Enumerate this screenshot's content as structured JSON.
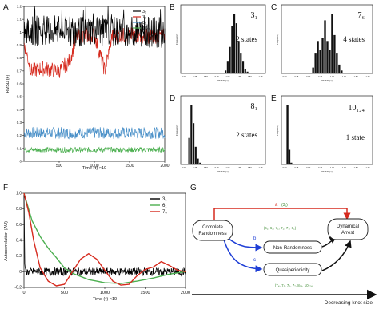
{
  "panels": {
    "A": {
      "letter": "A",
      "ylabel": "RMSD (F)",
      "xlabel": "Time (τ) ×10",
      "xticks": [
        "500",
        "1000",
        "1500",
        "2000"
      ],
      "yticks": [
        "0",
        "0.1",
        "0.2",
        "0.3",
        "0.4",
        "0.5",
        "0.6",
        "0.7",
        "0.8",
        "0.9",
        "1",
        "1.1",
        "1.2"
      ],
      "legend": [
        {
          "label": "3₁",
          "color": "#000000"
        },
        {
          "label": "7₆",
          "color": "#d62a1e"
        },
        {
          "label": "8₁",
          "color": "#4a90c8"
        },
        {
          "label": "10₁₂₄",
          "color": "#4caf50"
        }
      ]
    },
    "B": {
      "letter": "B",
      "knot": "3₁",
      "states": "2 states",
      "xlabel": "RMSD (σ)",
      "ylabel": "Frequency",
      "xticks": [
        "0.00",
        "0.25",
        "0.50",
        "0.75",
        "1.00",
        "1.25",
        "1.50",
        "1.75"
      ]
    },
    "C": {
      "letter": "C",
      "knot": "7₆",
      "states": "4 states",
      "xlabel": "RMSD (σ)",
      "ylabel": "Frequency",
      "xticks": [
        "0.00",
        "0.25",
        "0.50",
        "0.75",
        "1.00",
        "1.25",
        "1.50",
        "1.75"
      ]
    },
    "D": {
      "letter": "D",
      "knot": "8₁",
      "states": "2 states",
      "xlabel": "RMSD (σ)",
      "ylabel": "Frequency",
      "xticks": [
        "0.00",
        "0.25",
        "0.50",
        "0.75",
        "1.00",
        "1.25",
        "1.50",
        "1.75"
      ]
    },
    "E": {
      "letter": "E",
      "knot": "10₁₂₄",
      "states": "1 state",
      "xlabel": "RMSD (σ)",
      "ylabel": "Frequency",
      "xticks": [
        "0.00",
        "0.25",
        "0.50",
        "0.75",
        "1.00",
        "1.25",
        "1.50",
        "1.75"
      ]
    },
    "F": {
      "letter": "F",
      "ylabel": "Autocorrelation (AU)",
      "xlabel": "Time (τ) ×10",
      "xticks": [
        "0",
        "500",
        "1000",
        "1500",
        "2000"
      ],
      "yticks": [
        "-0.2",
        "0",
        "0.2",
        "0.4",
        "0.6",
        "0.8",
        "1.0"
      ],
      "legend": [
        {
          "label": "3₁",
          "color": "#000000"
        },
        {
          "label": "6₁",
          "color": "#4caf50"
        },
        {
          "label": "7₆",
          "color": "#d62a1e"
        }
      ]
    },
    "G": {
      "letter": "G",
      "nodes": {
        "complete": [
          "Complete",
          "Randomness"
        ],
        "arrest": [
          "Dynamical",
          "Arrest"
        ],
        "nonrandom": "Non-Randomness",
        "quasi": "Quasiperiodicity"
      },
      "labels": {
        "a": "a",
        "a_knot": "(3₁)",
        "b": "b",
        "b_knots": "(6₁, 6₂, 7₁, 7₂, 7₃, 8₁)",
        "c": "c",
        "c_knots": "(7₄, 7₅, 7₆, 7₇, 8₁₈, 10₁₂₄)"
      },
      "axis": "Decreasing knot size",
      "colors": {
        "a": "#d62a1e",
        "b": "#1f3fd6",
        "c": "#1f3fd6",
        "green": "#3d8a32"
      }
    }
  },
  "chart_data": [
    {
      "type": "line",
      "panel": "A",
      "xlabel": "Time (τ) ×10",
      "ylabel": "RMSD (F)",
      "xlim": [
        0,
        2000
      ],
      "ylim": [
        0,
        1.2
      ],
      "series": [
        {
          "name": "3₁",
          "x": [
            0,
            250,
            500,
            750,
            1000,
            1250,
            1500,
            1750,
            2000
          ],
          "values": [
            1.0,
            1.02,
            1.01,
            1.0,
            1.02,
            1.0,
            1.01,
            1.0,
            1.0
          ]
        },
        {
          "name": "7₆",
          "x": [
            0,
            100,
            250,
            500,
            650,
            750,
            1000,
            1150,
            1250,
            1500,
            1750,
            2000
          ],
          "values": [
            0.92,
            0.7,
            0.72,
            0.7,
            0.78,
            0.97,
            0.98,
            0.7,
            0.97,
            0.98,
            0.97,
            0.97
          ]
        },
        {
          "name": "8₁",
          "x": [
            0,
            500,
            1000,
            1500,
            2000
          ],
          "values": [
            0.22,
            0.22,
            0.22,
            0.22,
            0.22
          ]
        },
        {
          "name": "10₁₂₄",
          "x": [
            0,
            500,
            1000,
            1500,
            2000
          ],
          "values": [
            0.09,
            0.09,
            0.09,
            0.09,
            0.09
          ]
        }
      ]
    },
    {
      "type": "bar",
      "panel": "B",
      "title": "3₁",
      "annotation": "2 states",
      "xlabel": "RMSD (σ)",
      "ylabel": "Frequency",
      "xlim": [
        0,
        1.75
      ],
      "x": [
        0.95,
        1.0,
        1.05,
        1.1,
        1.15,
        1.2,
        1.25,
        1.3,
        1.35,
        1.4,
        1.45
      ],
      "values": [
        0.05,
        0.2,
        0.45,
        0.8,
        1.0,
        0.85,
        0.55,
        0.35,
        0.2,
        0.08,
        0.03
      ]
    },
    {
      "type": "bar",
      "panel": "C",
      "title": "7₆",
      "annotation": "4 states",
      "xlabel": "RMSD (σ)",
      "ylabel": "Frequency",
      "xlim": [
        0,
        1.75
      ],
      "x": [
        0.6,
        0.65,
        0.7,
        0.75,
        0.8,
        0.85,
        0.9,
        0.95,
        1.0,
        1.05,
        1.1,
        1.15,
        1.2
      ],
      "values": [
        0.1,
        0.35,
        0.55,
        0.4,
        0.6,
        0.9,
        0.55,
        0.4,
        1.0,
        0.65,
        0.35,
        0.15,
        0.05
      ]
    },
    {
      "type": "bar",
      "panel": "D",
      "title": "8₁",
      "annotation": "2 states",
      "xlabel": "RMSD (σ)",
      "ylabel": "Frequency",
      "xlim": [
        0,
        1.75
      ],
      "x": [
        0.12,
        0.17,
        0.22,
        0.27,
        0.32,
        0.37
      ],
      "values": [
        0.45,
        1.0,
        0.7,
        0.3,
        0.1,
        0.03
      ]
    },
    {
      "type": "bar",
      "panel": "E",
      "title": "10₁₂₄",
      "annotation": "1 state",
      "xlabel": "RMSD (σ)",
      "ylabel": "Frequency",
      "xlim": [
        0,
        1.75
      ],
      "x": [
        0.06,
        0.1,
        0.14
      ],
      "values": [
        1.0,
        0.25,
        0.03
      ]
    },
    {
      "type": "line",
      "panel": "F",
      "xlabel": "Time (τ) ×10",
      "ylabel": "Autocorrelation (AU)",
      "xlim": [
        0,
        2000
      ],
      "ylim": [
        -0.2,
        1.0
      ],
      "series": [
        {
          "name": "3₁",
          "x": [
            0,
            500,
            1000,
            1500,
            2000
          ],
          "values": [
            0.0,
            0.0,
            0.0,
            0.0,
            0.0
          ]
        },
        {
          "name": "6₁",
          "x": [
            0,
            100,
            200,
            300,
            400,
            500,
            600,
            700,
            800,
            900,
            1000,
            1200,
            1400,
            1600,
            1800,
            2000
          ],
          "values": [
            1.0,
            0.65,
            0.45,
            0.3,
            0.18,
            0.05,
            -0.02,
            -0.06,
            -0.1,
            -0.12,
            -0.14,
            -0.15,
            -0.12,
            -0.08,
            -0.03,
            0.0
          ]
        },
        {
          "name": "7₆",
          "x": [
            0,
            60,
            120,
            200,
            300,
            400,
            500,
            600,
            700,
            800,
            900,
            1000,
            1100,
            1200,
            1300,
            1400,
            1500,
            1600,
            1700,
            1800,
            1900,
            2000
          ],
          "values": [
            1.0,
            0.75,
            0.4,
            0.05,
            -0.12,
            -0.18,
            -0.16,
            0.0,
            0.16,
            0.23,
            0.16,
            0.02,
            -0.12,
            -0.17,
            -0.16,
            -0.05,
            0.03,
            0.06,
            0.13,
            0.08,
            0.02,
            0.0
          ]
        }
      ]
    }
  ]
}
